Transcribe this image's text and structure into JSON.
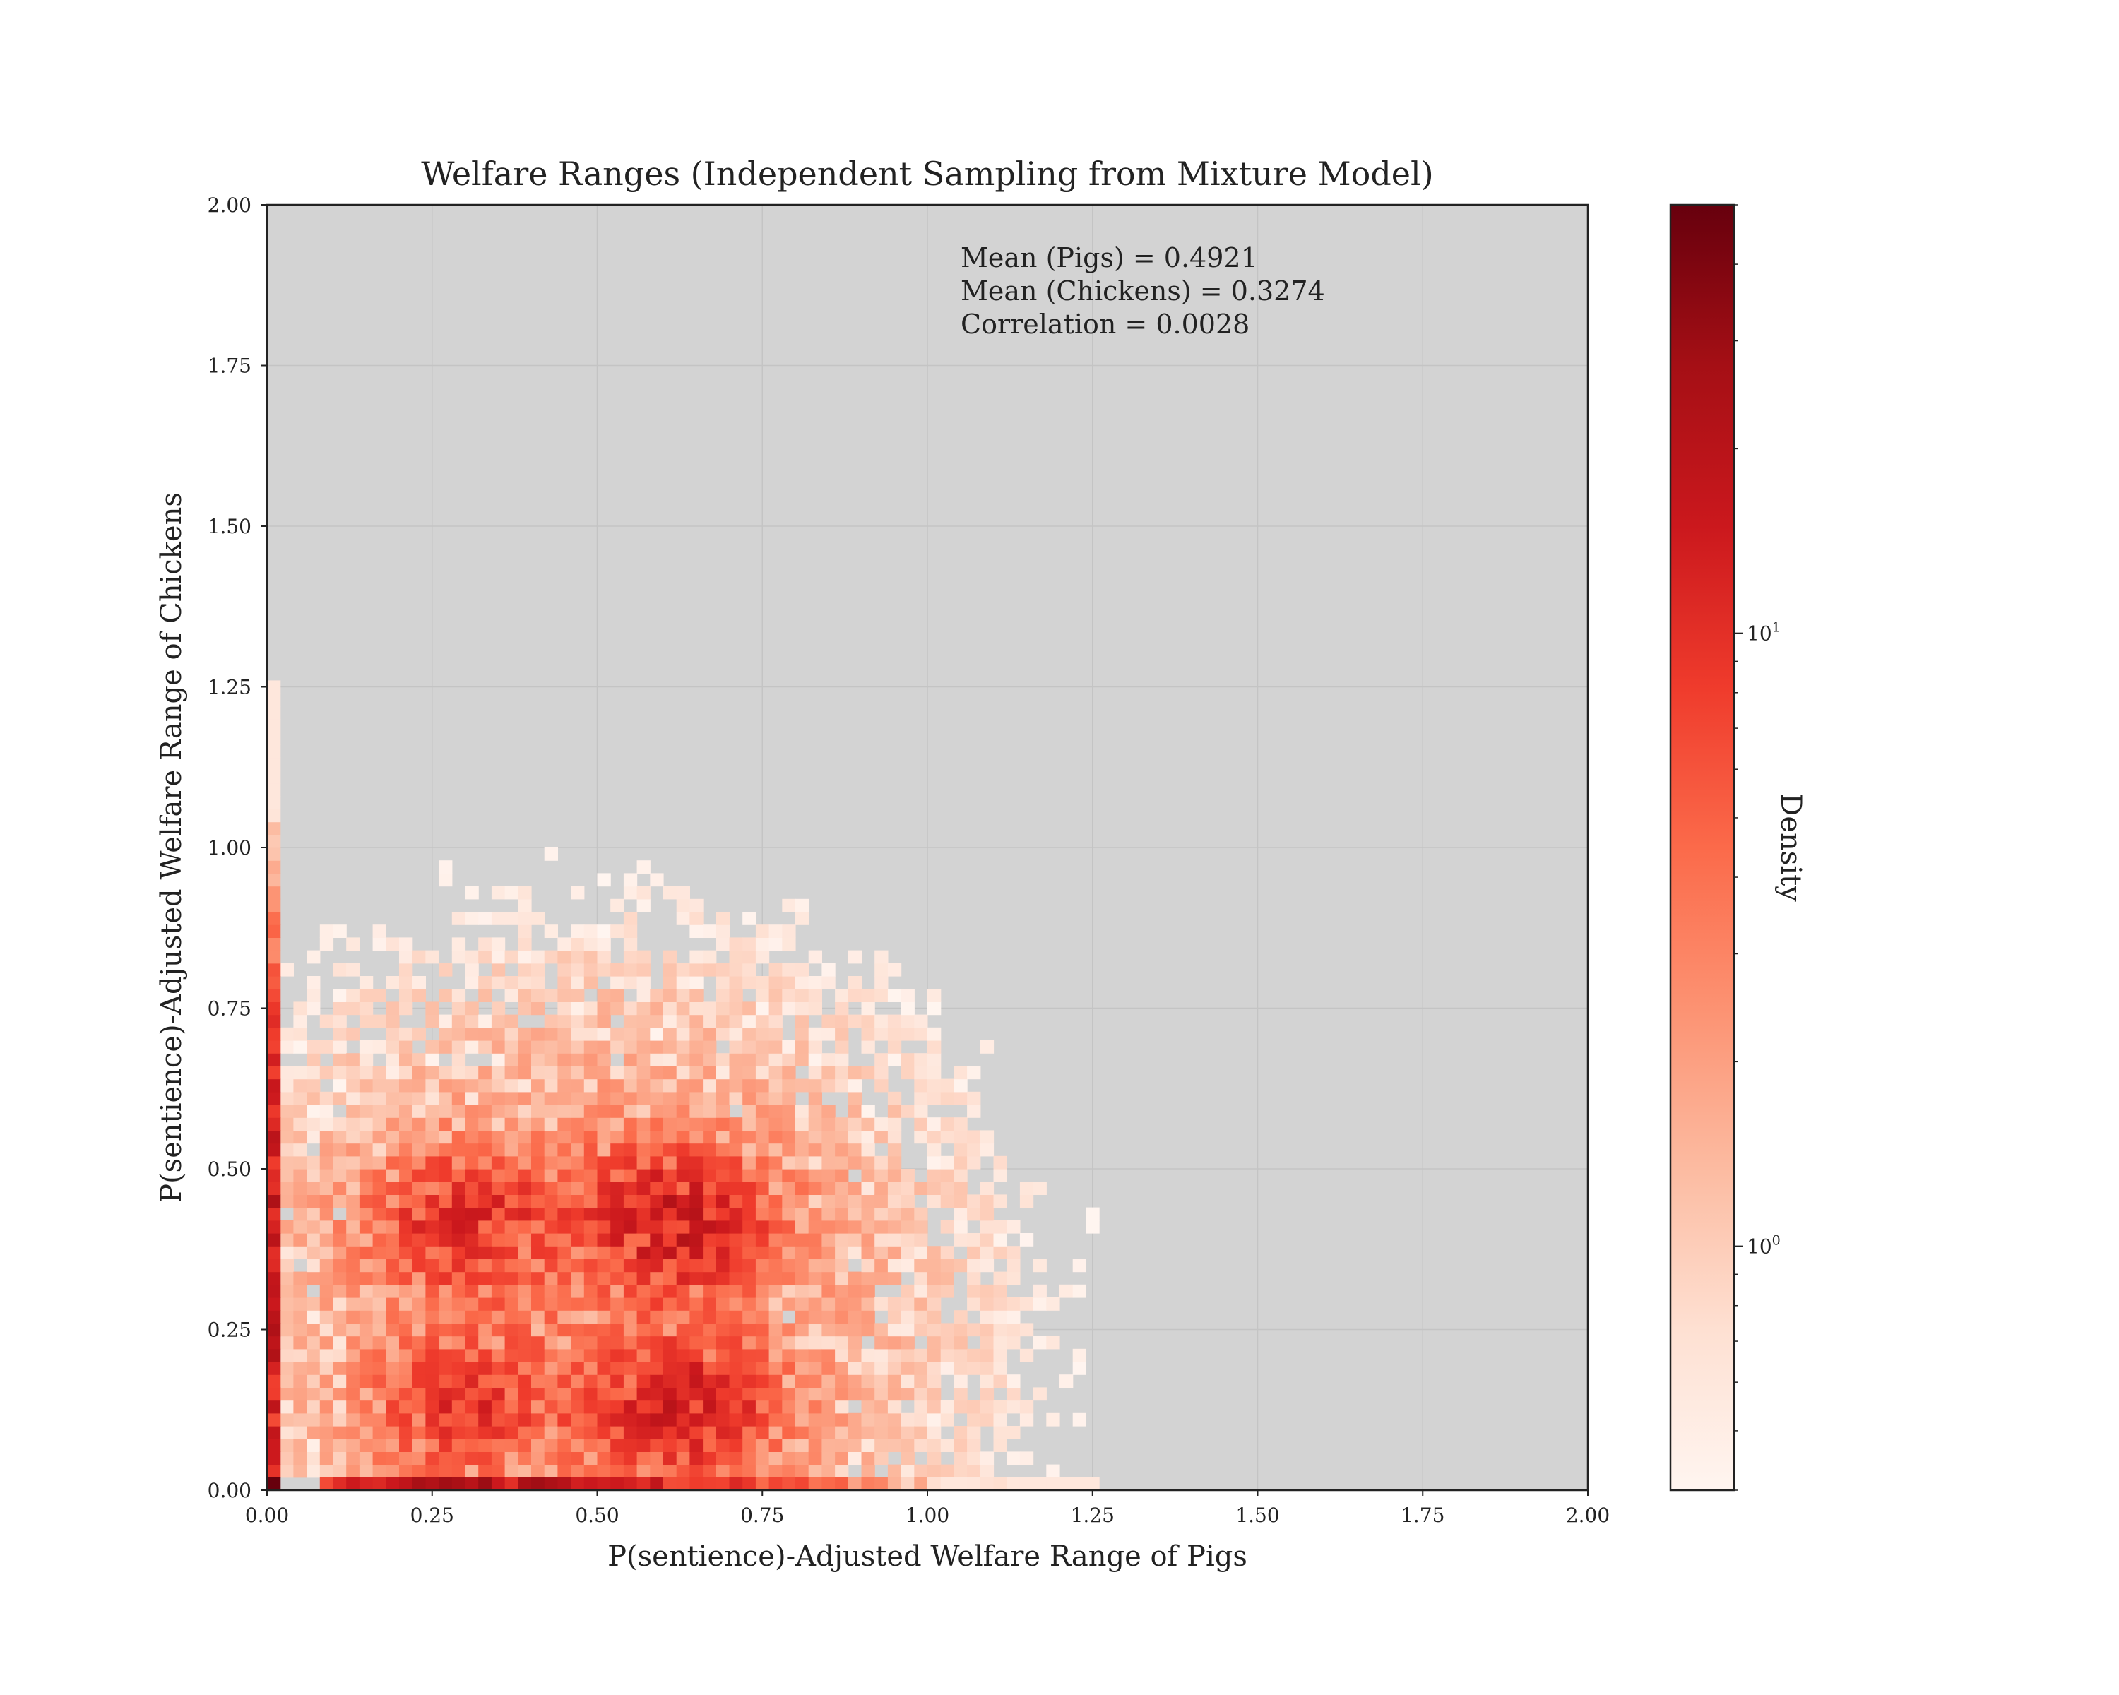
{
  "chart_data": {
    "type": "heatmap",
    "title": "Welfare Ranges (Independent Sampling from Mixture Model)",
    "xlabel": "P(sentience)-Adjusted Welfare Range of Pigs",
    "ylabel": "P(sentience)-Adjusted Welfare Range of Chickens",
    "xlim": [
      0,
      2
    ],
    "ylim": [
      0,
      2
    ],
    "x_ticks": [
      "0.00",
      "0.25",
      "0.50",
      "0.75",
      "1.00",
      "1.25",
      "1.50",
      "1.75",
      "2.00"
    ],
    "y_ticks": [
      "0.00",
      "0.25",
      "0.50",
      "0.75",
      "1.00",
      "1.25",
      "1.50",
      "1.75",
      "2.00"
    ],
    "grid": true,
    "background": "#d3d3d3",
    "colormap": "Reds",
    "bins": [
      100,
      100
    ],
    "annotation": {
      "lines": [
        "Mean (Pigs) = 0.4921",
        "Mean (Chickens) = 0.3274",
        "Correlation = 0.0028"
      ],
      "placement": "top-right"
    },
    "colorbar": {
      "label": "Density",
      "scale": "log",
      "range": [
        0.4,
        50
      ],
      "tick_labels": [
        {
          "base": "10",
          "exp": "0",
          "value": 1
        },
        {
          "base": "10",
          "exp": "1",
          "value": 10
        }
      ]
    },
    "density_clusters": [
      {
        "x": 0.3,
        "y": 0.42,
        "peak": 8
      },
      {
        "x": 0.62,
        "y": 0.42,
        "peak": 12
      },
      {
        "x": 0.3,
        "y": 0.13,
        "peak": 7
      },
      {
        "x": 0.63,
        "y": 0.13,
        "peak": 10
      }
    ],
    "marginal_strips": [
      {
        "axis": "x",
        "at": 0.0,
        "from": 0.0,
        "to": 1.25,
        "peak": 20
      },
      {
        "axis": "y",
        "at": 0.0,
        "from": 0.0,
        "to": 1.25,
        "peak": 18
      }
    ],
    "corner_peak": {
      "x": 0.0,
      "y": 0.0,
      "value": 50
    }
  }
}
